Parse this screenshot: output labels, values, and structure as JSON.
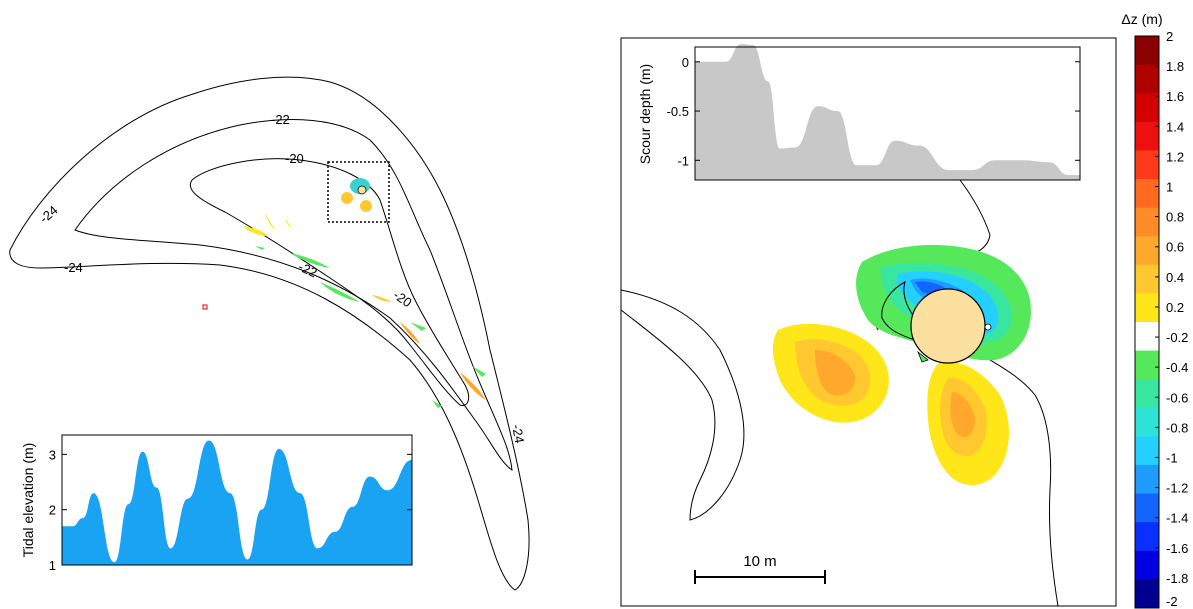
{
  "chart_data": [
    {
      "type": "area",
      "panel": "left-map-inset",
      "ylabel": "Tidal elevation (m)",
      "xlabel": "",
      "ylim": [
        1,
        3.35
      ],
      "y_ticks": [
        "1",
        "2",
        "3"
      ],
      "x": [
        0,
        0.03,
        0.06,
        0.09,
        0.15,
        0.19,
        0.23,
        0.27,
        0.31,
        0.36,
        0.42,
        0.48,
        0.53,
        0.57,
        0.62,
        0.68,
        0.73,
        0.78,
        0.83,
        0.88,
        0.93,
        1.0
      ],
      "values": [
        1.7,
        1.7,
        1.85,
        2.3,
        1.05,
        2.1,
        3.05,
        2.4,
        1.3,
        2.2,
        3.25,
        2.3,
        1.1,
        2.0,
        3.1,
        2.3,
        1.3,
        1.6,
        2.05,
        2.6,
        2.35,
        2.9
      ],
      "fill_color": "#1aa3f2"
    },
    {
      "type": "area",
      "panel": "right-zoom-inset",
      "ylabel": "Scour depth (m)",
      "xlabel": "",
      "ylim": [
        -1.2,
        0.15
      ],
      "y_ticks": [
        "0",
        "-0.5",
        "-1"
      ],
      "x": [
        0,
        0.08,
        0.12,
        0.15,
        0.19,
        0.22,
        0.26,
        0.32,
        0.37,
        0.42,
        0.47,
        0.52,
        0.58,
        0.66,
        0.72,
        0.78,
        0.85,
        0.92,
        0.97,
        1.0
      ],
      "values": [
        0,
        0,
        0.18,
        0.17,
        -0.2,
        -0.88,
        -0.87,
        -0.45,
        -0.5,
        -1.05,
        -1.05,
        -0.8,
        -0.85,
        -1.1,
        -1.1,
        -1.0,
        -1.0,
        -1.02,
        -1.15,
        -1.15
      ],
      "fill_color": "#c8c8c8"
    },
    {
      "type": "heatmap",
      "panel": "colorbar",
      "title": "Δz (m)",
      "tick_labels": [
        "2",
        "1.8",
        "1.6",
        "1.4",
        "1.2",
        "1",
        "0.8",
        "0.6",
        "0.4",
        "0.2",
        "-0.2",
        "-0.4",
        "-0.6",
        "-0.8",
        "-1",
        "-1.2",
        "-1.4",
        "-1.6",
        "-1.8",
        "-2"
      ],
      "colors": [
        "#8b0000",
        "#b00000",
        "#d40000",
        "#ee1010",
        "#ff3a1a",
        "#ff6a20",
        "#ff8c28",
        "#ffa82c",
        "#ffc830",
        "#ffe619",
        "#ffffff",
        "#55e85a",
        "#39e6a0",
        "#2de3d8",
        "#23d0ff",
        "#1e9cff",
        "#1464ff",
        "#0a30ff",
        "#0000e0",
        "#000090"
      ]
    }
  ],
  "map": {
    "contour_labels": [
      "-22",
      "-20",
      "-24",
      "-24",
      "-22",
      "-20",
      "-24"
    ]
  },
  "scale_bar": {
    "label": "10 m"
  }
}
